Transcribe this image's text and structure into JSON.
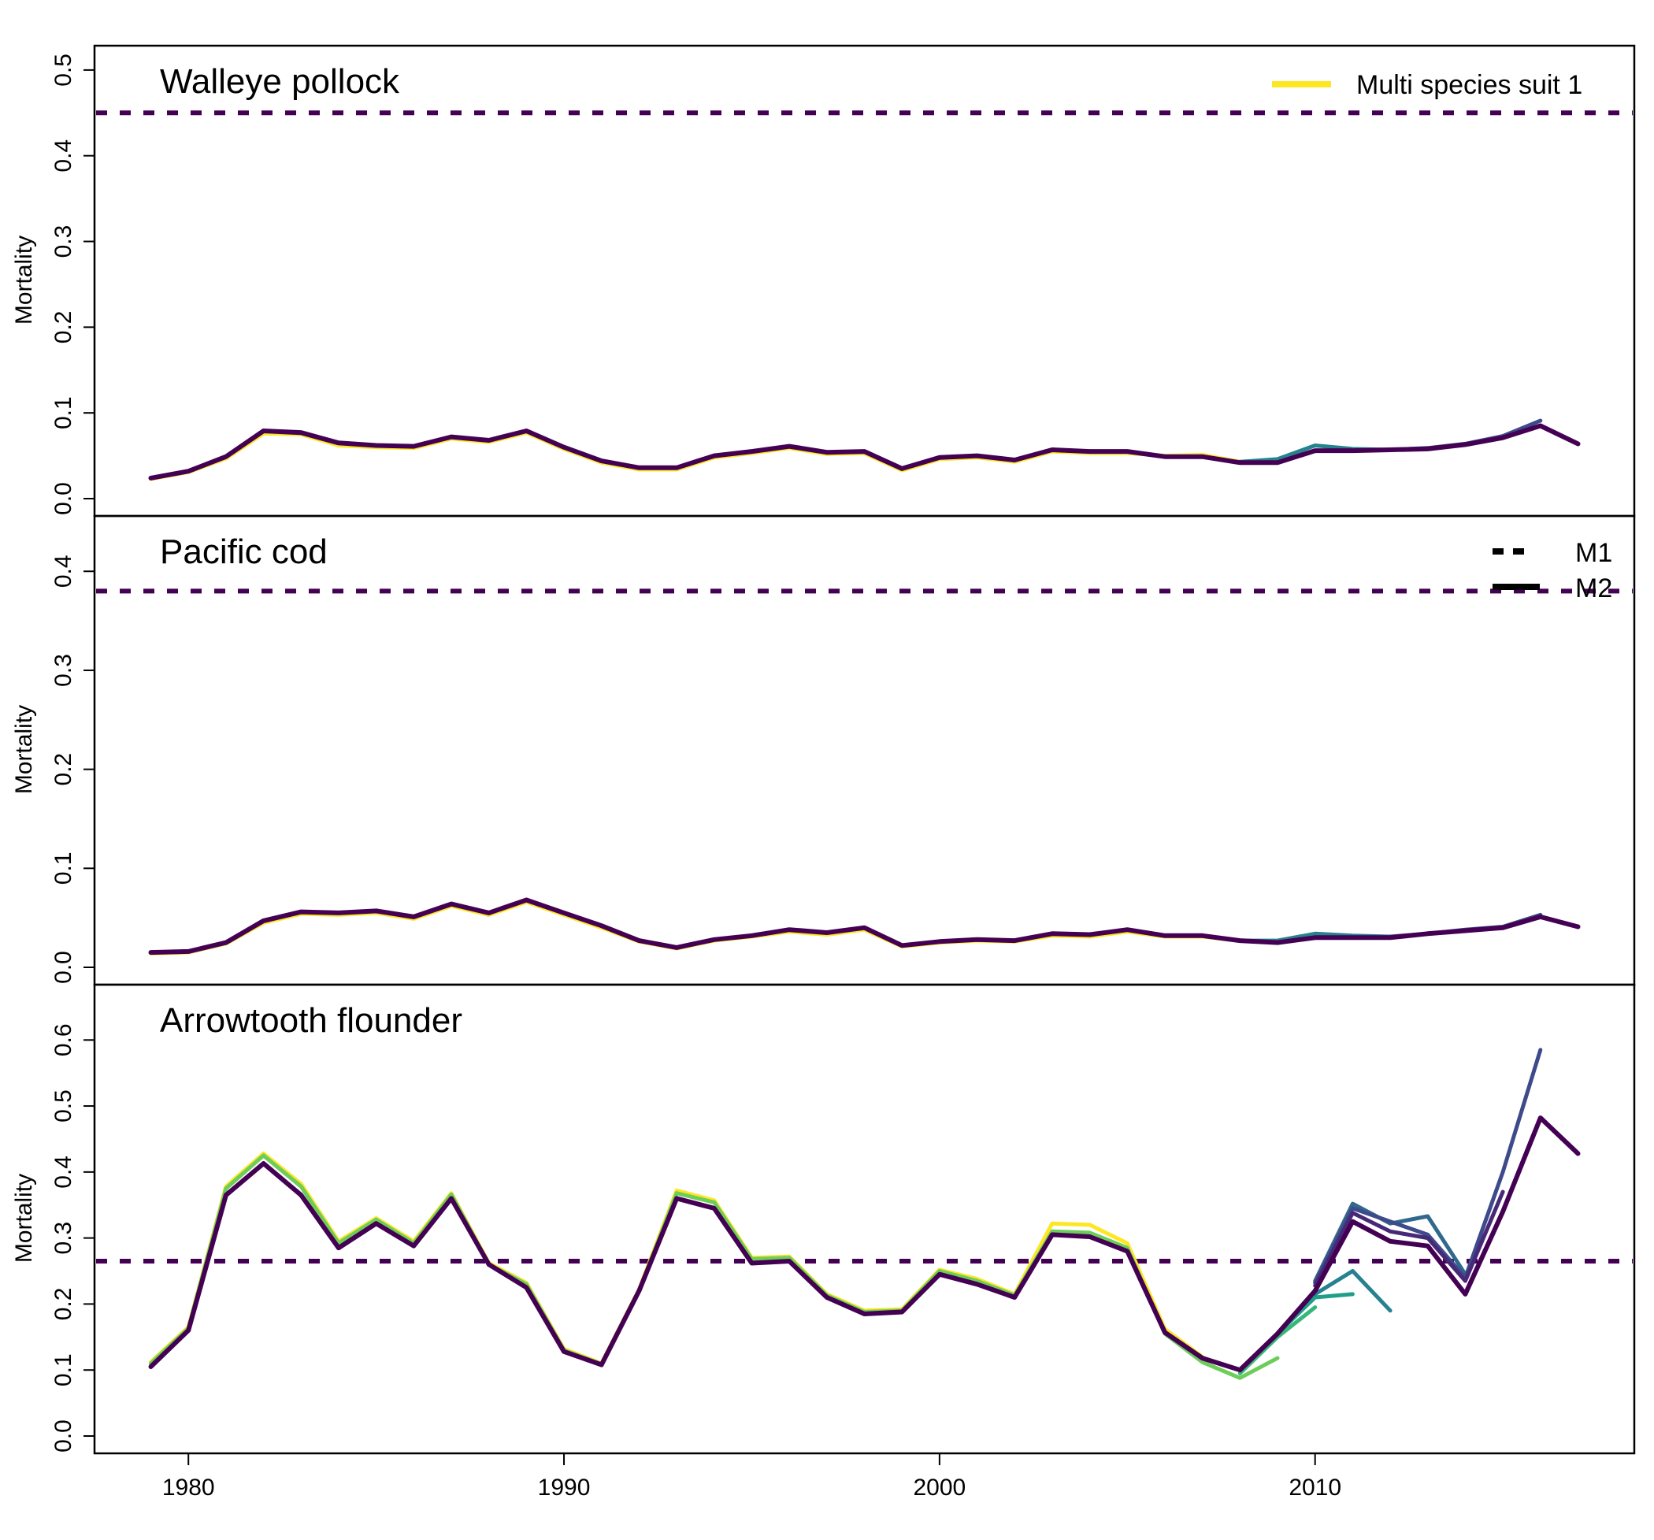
{
  "figure": {
    "x_ticks": [
      1980,
      1990,
      2000,
      2010
    ],
    "xlim": [
      1977.5,
      2018.5
    ]
  },
  "legend_suit": {
    "label": "Multi species suit 1",
    "color": "#FDE725"
  },
  "legend_types": [
    {
      "label": "M1",
      "style": "dashed"
    },
    {
      "label": "M2",
      "style": "solid"
    }
  ],
  "colors": {
    "m1_line": "#440154",
    "final": "#440154",
    "run_palette": [
      "#FDE725",
      "#B4DE2C",
      "#6DCD59",
      "#35B779",
      "#1F9E89",
      "#26828E",
      "#31688E",
      "#3E4A89",
      "#482878",
      "#440154"
    ],
    "frame": "#000000"
  },
  "chart_data": [
    {
      "type": "line",
      "title": "Walleye pollock",
      "ylabel": "Mortality",
      "ylim": [
        0,
        0.51
      ],
      "y_ticks": [
        "0.0",
        "0.1",
        "0.2",
        "0.3",
        "0.4",
        "0.5"
      ],
      "m1": 0.45,
      "x": [
        1979,
        1980,
        1981,
        1982,
        1983,
        1984,
        1985,
        1986,
        1987,
        1988,
        1989,
        1990,
        1991,
        1992,
        1993,
        1994,
        1995,
        1996,
        1997,
        1998,
        1999,
        2000,
        2001,
        2002,
        2003,
        2004,
        2005,
        2006,
        2007,
        2008,
        2009,
        2010,
        2011,
        2012,
        2013,
        2014,
        2015,
        2016,
        2017
      ],
      "m2": [
        0.024,
        0.032,
        0.049,
        0.079,
        0.077,
        0.065,
        0.062,
        0.061,
        0.072,
        0.068,
        0.079,
        0.06,
        0.044,
        0.036,
        0.036,
        0.05,
        0.055,
        0.061,
        0.054,
        0.055,
        0.035,
        0.048,
        0.05,
        0.045,
        0.057,
        0.055,
        0.055,
        0.049,
        0.049,
        0.042,
        0.042,
        0.056,
        0.056,
        0.057,
        0.058,
        0.063,
        0.071,
        0.085,
        0.064
      ],
      "variants": [
        {
          "color": "#FDE725",
          "x": [
            1979,
            1980,
            1981,
            1982,
            1983,
            1984,
            1985,
            1986,
            1987,
            1988,
            1989,
            1990,
            1991,
            1992,
            1993,
            1994,
            1995,
            1996,
            1997,
            1998,
            1999,
            2000,
            2001,
            2002,
            2003,
            2004,
            2005,
            2006,
            2007,
            2008
          ],
          "y": [
            0.023,
            0.031,
            0.047,
            0.076,
            0.075,
            0.062,
            0.06,
            0.059,
            0.07,
            0.066,
            0.077,
            0.058,
            0.042,
            0.034,
            0.034,
            0.048,
            0.053,
            0.059,
            0.052,
            0.053,
            0.033,
            0.046,
            0.048,
            0.043,
            0.055,
            0.053,
            0.053,
            0.05,
            0.051,
            0.043
          ]
        },
        {
          "color": "#26828E",
          "x": [
            2008,
            2009,
            2010,
            2011,
            2012
          ],
          "y": [
            0.043,
            0.046,
            0.062,
            0.058,
            0.057
          ]
        },
        {
          "color": "#3E4A89",
          "x": [
            2012,
            2013,
            2014,
            2015,
            2016
          ],
          "y": [
            0.057,
            0.059,
            0.064,
            0.073,
            0.091
          ]
        }
      ]
    },
    {
      "type": "line",
      "title": "Pacific cod",
      "ylabel": "Mortality",
      "ylim": [
        0,
        0.44
      ],
      "y_ticks": [
        "0.0",
        "0.1",
        "0.2",
        "0.3",
        "0.4"
      ],
      "m1": 0.38,
      "x": [
        1979,
        1980,
        1981,
        1982,
        1983,
        1984,
        1985,
        1986,
        1987,
        1988,
        1989,
        1990,
        1991,
        1992,
        1993,
        1994,
        1995,
        1996,
        1997,
        1998,
        1999,
        2000,
        2001,
        2002,
        2003,
        2004,
        2005,
        2006,
        2007,
        2008,
        2009,
        2010,
        2011,
        2012,
        2013,
        2014,
        2015,
        2016,
        2017
      ],
      "m2": [
        0.015,
        0.016,
        0.025,
        0.047,
        0.056,
        0.055,
        0.057,
        0.051,
        0.064,
        0.055,
        0.068,
        0.055,
        0.042,
        0.027,
        0.02,
        0.028,
        0.032,
        0.038,
        0.035,
        0.04,
        0.022,
        0.026,
        0.028,
        0.027,
        0.034,
        0.033,
        0.038,
        0.032,
        0.032,
        0.027,
        0.025,
        0.03,
        0.03,
        0.03,
        0.034,
        0.037,
        0.04,
        0.051,
        0.041
      ],
      "variants": [
        {
          "color": "#FDE725",
          "x": [
            1979,
            1980,
            1981,
            1982,
            1983,
            1984,
            1985,
            1986,
            1987,
            1988,
            1989,
            1990,
            1991,
            1992,
            1993,
            1994,
            1995,
            1996,
            1997,
            1998,
            1999,
            2000,
            2001,
            2002,
            2003,
            2004,
            2005,
            2006,
            2007,
            2008
          ],
          "y": [
            0.014,
            0.015,
            0.024,
            0.045,
            0.054,
            0.053,
            0.055,
            0.049,
            0.062,
            0.053,
            0.066,
            0.053,
            0.04,
            0.026,
            0.019,
            0.027,
            0.031,
            0.036,
            0.033,
            0.038,
            0.021,
            0.025,
            0.027,
            0.026,
            0.032,
            0.031,
            0.036,
            0.031,
            0.031,
            0.027
          ]
        },
        {
          "color": "#26828E",
          "x": [
            2008,
            2009,
            2010,
            2011,
            2012
          ],
          "y": [
            0.027,
            0.027,
            0.034,
            0.032,
            0.031
          ]
        },
        {
          "color": "#3E4A89",
          "x": [
            2012,
            2013,
            2014,
            2015,
            2016
          ],
          "y": [
            0.031,
            0.034,
            0.038,
            0.041,
            0.053
          ]
        }
      ]
    },
    {
      "type": "line",
      "title": "Arrowtooth flounder",
      "ylabel": "Mortality",
      "ylim": [
        0,
        0.66
      ],
      "y_ticks": [
        "0.0",
        "0.1",
        "0.2",
        "0.3",
        "0.4",
        "0.5",
        "0.6"
      ],
      "m1": 0.265,
      "x": [
        1979,
        1980,
        1981,
        1982,
        1983,
        1984,
        1985,
        1986,
        1987,
        1988,
        1989,
        1990,
        1991,
        1992,
        1993,
        1994,
        1995,
        1996,
        1997,
        1998,
        1999,
        2000,
        2001,
        2002,
        2003,
        2004,
        2005,
        2006,
        2007,
        2008,
        2009,
        2010,
        2011,
        2012,
        2013,
        2014,
        2015,
        2016,
        2017
      ],
      "m2": [
        0.105,
        0.16,
        0.365,
        0.413,
        0.365,
        0.285,
        0.322,
        0.288,
        0.36,
        0.26,
        0.225,
        0.128,
        0.108,
        0.22,
        0.36,
        0.345,
        0.262,
        0.265,
        0.21,
        0.185,
        0.188,
        0.245,
        0.23,
        0.21,
        0.305,
        0.302,
        0.28,
        0.157,
        0.118,
        0.1,
        0.155,
        0.22,
        0.325,
        0.295,
        0.288,
        0.215,
        0.34,
        0.482,
        0.428
      ],
      "variants": [
        {
          "color": "#FDE725",
          "x": [
            1979,
            1980,
            1981,
            1982,
            1983,
            1984,
            1985,
            1986,
            1987,
            1988,
            1989,
            1990,
            1991,
            1992,
            1993,
            1994,
            1995,
            1996,
            1997,
            1998,
            1999,
            2000,
            2001,
            2002,
            2003,
            2004,
            2005,
            2006,
            2007
          ],
          "y": [
            0.112,
            0.165,
            0.378,
            0.428,
            0.382,
            0.295,
            0.33,
            0.295,
            0.368,
            0.262,
            0.232,
            0.132,
            0.11,
            0.222,
            0.372,
            0.357,
            0.27,
            0.272,
            0.215,
            0.19,
            0.192,
            0.252,
            0.238,
            0.215,
            0.322,
            0.32,
            0.292,
            0.162,
            0.12
          ]
        },
        {
          "color": "#6DCD59",
          "x": [
            1979,
            1980,
            1981,
            1982,
            1983,
            1984,
            1985,
            1986,
            1987,
            1988,
            1989,
            1990,
            1991,
            1992,
            1993,
            1994,
            1995,
            1996,
            1997,
            1998,
            1999,
            2000,
            2001,
            2002,
            2003,
            2004,
            2005,
            2006,
            2007,
            2008,
            2009
          ],
          "y": [
            0.11,
            0.163,
            0.375,
            0.425,
            0.378,
            0.292,
            0.328,
            0.292,
            0.366,
            0.26,
            0.23,
            0.13,
            0.109,
            0.22,
            0.368,
            0.354,
            0.268,
            0.27,
            0.213,
            0.188,
            0.19,
            0.25,
            0.235,
            0.213,
            0.31,
            0.308,
            0.285,
            0.155,
            0.112,
            0.088,
            0.118
          ]
        },
        {
          "color": "#35B779",
          "x": [
            2008,
            2009,
            2010
          ],
          "y": [
            0.095,
            0.15,
            0.195
          ]
        },
        {
          "color": "#1F9E89",
          "x": [
            2009,
            2010,
            2011
          ],
          "y": [
            0.155,
            0.21,
            0.215
          ]
        },
        {
          "color": "#26828E",
          "x": [
            2010,
            2011,
            2012
          ],
          "y": [
            0.215,
            0.25,
            0.19
          ]
        },
        {
          "color": "#31688E",
          "x": [
            2010,
            2011,
            2012,
            2013,
            2014
          ],
          "y": [
            0.235,
            0.352,
            0.322,
            0.333,
            0.245
          ]
        },
        {
          "color": "#3E4A89",
          "x": [
            2010,
            2011,
            2012,
            2013,
            2014,
            2015,
            2016
          ],
          "y": [
            0.232,
            0.345,
            0.325,
            0.305,
            0.24,
            0.4,
            0.585
          ]
        },
        {
          "color": "#482878",
          "x": [
            2010,
            2011,
            2012,
            2013,
            2014,
            2015
          ],
          "y": [
            0.228,
            0.338,
            0.31,
            0.3,
            0.235,
            0.37
          ]
        }
      ]
    }
  ]
}
